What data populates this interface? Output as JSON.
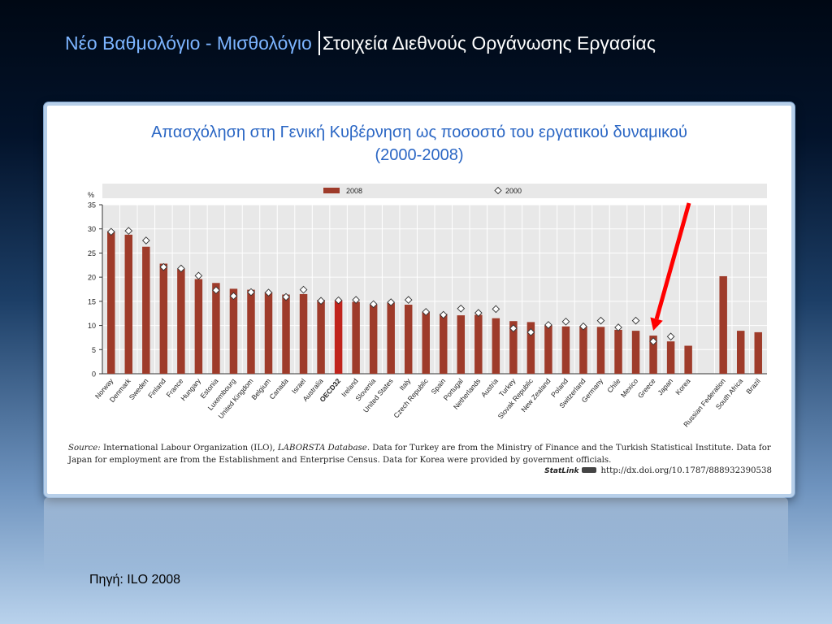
{
  "slide": {
    "title_part1": "Νέο Βαθμολόγιο - Μισθολόγιο",
    "title_part2": "Στοιχεία Διεθνούς Οργάνωσης Εργασίας",
    "footer_source": "Πηγή: ILO 2008"
  },
  "panel": {
    "title_line1": "Απασχόληση στη Γενική Κυβέρνηση ως ποσοστό του εργατικού δυναμικού",
    "title_line2": "(2000-2008)",
    "source_label": "Source:",
    "source_text_1": "International Labour Organization (ILO),",
    "source_db": "LABORSTA Database",
    "source_text_2": ". Data for Turkey are from the Ministry of Finance and the Turkish Statistical Institute. Data for Japan for employment are from the Establishment and Enterprise Census. Data for Korea were provided by government officials.",
    "statlink_label": "StatLink",
    "statlink_url": "http://dx.doi.org/10.1787/888932390538"
  },
  "colors": {
    "bar": "#9e3b2a",
    "bar_highlight": "#c0241c",
    "arrow": "#ff0000",
    "plot_bg": "#e8e8e8",
    "title_blue": "#2a66c4"
  },
  "chart_data": {
    "type": "bar",
    "ylabel": "%",
    "ylim": [
      0,
      35
    ],
    "yticks": [
      0,
      5,
      10,
      15,
      20,
      25,
      30,
      35
    ],
    "grid": true,
    "legend_position": "top",
    "highlight_category": "OECD32",
    "annotated_category": "Greece",
    "categories": [
      "Norway",
      "Denmark",
      "Sweden",
      "Finland",
      "France",
      "Hungary",
      "Estonia",
      "Luxembourg",
      "United Kingdom",
      "Belgium",
      "Canada",
      "Israel",
      "Australia",
      "OECD32",
      "Ireland",
      "Slovenia",
      "United States",
      "Italy",
      "Czech Republic",
      "Spain",
      "Portugal",
      "Netherlands",
      "Austria",
      "Turkey",
      "Slovak Republic",
      "New Zealand",
      "Poland",
      "Switzerland",
      "Germany",
      "Chile",
      "Mexico",
      "Greece",
      "Japan",
      "Korea",
      "",
      "Russian Federation",
      "South Africa",
      "Brazil"
    ],
    "series": [
      {
        "name": "2008",
        "marker": "bar",
        "values": [
          29.5,
          28.8,
          26.3,
          22.8,
          21.7,
          19.6,
          18.8,
          17.6,
          17.4,
          16.9,
          16.4,
          16.5,
          15.3,
          15.2,
          14.9,
          14.3,
          14.7,
          14.3,
          12.8,
          12.4,
          12.1,
          12.2,
          11.5,
          10.9,
          10.7,
          10.0,
          9.8,
          9.8,
          9.7,
          9.1,
          8.9,
          7.9,
          6.7,
          5.8,
          null,
          20.2,
          8.9,
          8.6
        ]
      },
      {
        "name": "2000",
        "marker": "diamond",
        "values": [
          29.4,
          29.6,
          27.6,
          22.1,
          21.8,
          20.3,
          17.3,
          16.1,
          16.9,
          16.8,
          15.9,
          17.4,
          15.1,
          15.2,
          15.3,
          14.4,
          14.8,
          15.3,
          12.8,
          12.2,
          13.5,
          12.6,
          13.4,
          9.4,
          8.6,
          10.1,
          10.8,
          9.8,
          11.0,
          9.6,
          11.0,
          6.7,
          7.7,
          null,
          null,
          null,
          null,
          null
        ]
      }
    ]
  }
}
